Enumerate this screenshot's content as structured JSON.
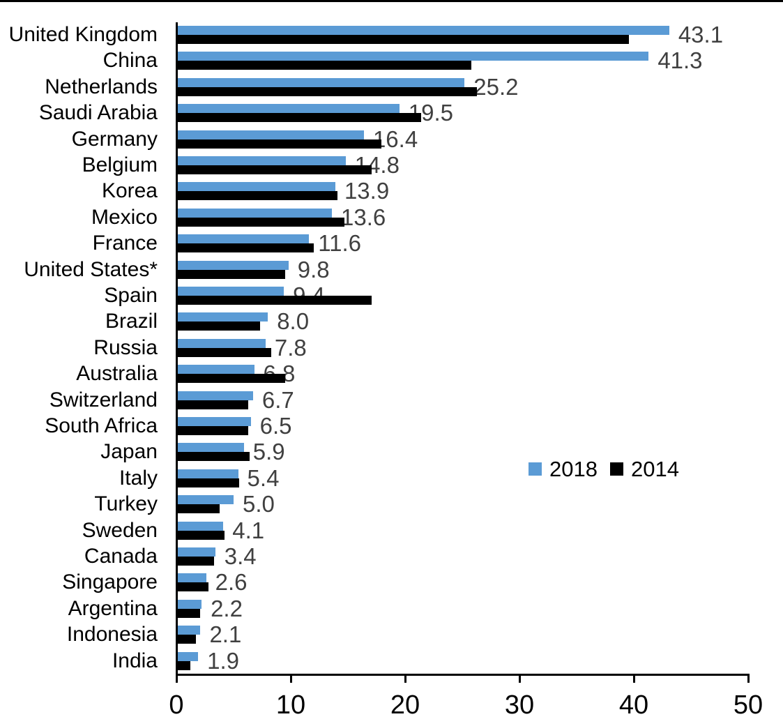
{
  "chart_data": {
    "type": "bar",
    "orientation": "horizontal",
    "title": "",
    "xlabel": "",
    "ylabel": "",
    "xlim": [
      0,
      50
    ],
    "x_ticks": [
      "0",
      "10",
      "20",
      "30",
      "40",
      "50"
    ],
    "grid": false,
    "legend_position": "middle-right",
    "categories": [
      "United Kingdom",
      "China",
      "Netherlands",
      "Saudi Arabia",
      "Germany",
      "Belgium",
      "Korea",
      "Mexico",
      "France",
      "United States*",
      "Spain",
      "Brazil",
      "Russia",
      "Australia",
      "Switzerland",
      "South Africa",
      "Japan",
      "Italy",
      "Turkey",
      "Sweden",
      "Canada",
      "Singapore",
      "Argentina",
      "Indonesia",
      "India"
    ],
    "series": [
      {
        "name": "2018",
        "color": "#5B9BD5",
        "values": [
          43.1,
          41.3,
          25.2,
          19.5,
          16.4,
          14.8,
          13.9,
          13.6,
          11.6,
          9.8,
          9.4,
          8.0,
          7.8,
          6.8,
          6.7,
          6.5,
          5.9,
          5.4,
          5.0,
          4.1,
          3.4,
          2.6,
          2.2,
          2.1,
          1.9
        ]
      },
      {
        "name": "2014",
        "color": "#000000",
        "values": [
          39.6,
          25.8,
          26.3,
          21.4,
          17.9,
          17.1,
          14.1,
          14.7,
          12.0,
          9.5,
          17.1,
          7.3,
          8.3,
          9.5,
          6.3,
          6.3,
          6.4,
          5.5,
          3.8,
          4.2,
          3.3,
          2.8,
          2.1,
          1.7,
          1.2
        ]
      }
    ],
    "value_labels_series": "2018",
    "value_labels": [
      "43.1",
      "41.3",
      "25.2",
      "19.5",
      "16.4",
      "14.8",
      "13.9",
      "13.6",
      "11.6",
      "9.8",
      "9.4",
      "8.0",
      "7.8",
      "6.8",
      "6.7",
      "6.5",
      "5.9",
      "5.4",
      "5.0",
      "4.1",
      "3.4",
      "2.6",
      "2.2",
      "2.1",
      "1.9"
    ],
    "colors": {
      "series_2018": "#5B9BD5",
      "series_2014": "#000000",
      "value_label": "#404040",
      "axis": "#000000",
      "background": "#ffffff"
    }
  }
}
